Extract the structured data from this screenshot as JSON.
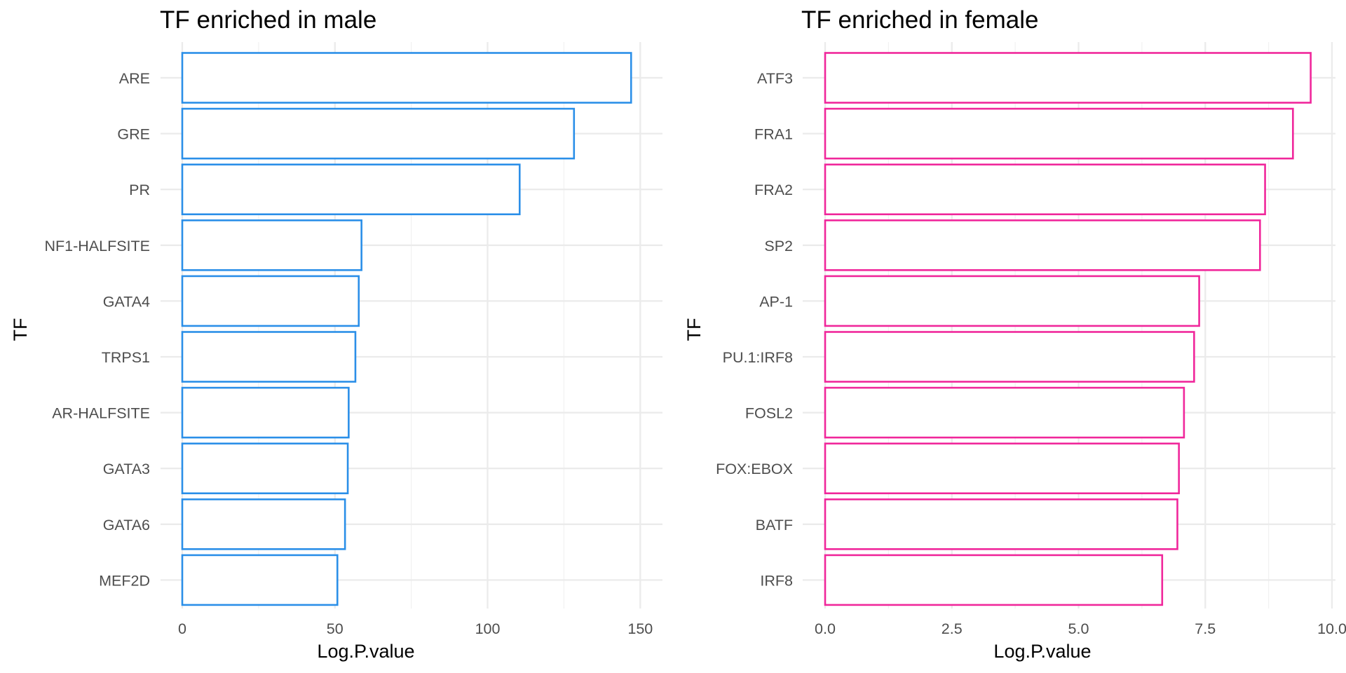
{
  "chart_data": [
    {
      "type": "bar",
      "orientation": "horizontal",
      "title": "TF enriched in male",
      "xlabel": "Log.P.value",
      "ylabel": "TF",
      "categories": [
        "ARE",
        "GRE",
        "PR",
        "NF1-HALFSITE",
        "GATA4",
        "TRPS1",
        "AR-HALFSITE",
        "GATA3",
        "GATA6",
        "MEF2D"
      ],
      "values": [
        147,
        128.3,
        110.5,
        58.7,
        57.8,
        56.7,
        54.5,
        54.2,
        53.3,
        50.8
      ],
      "xlim": [
        0,
        155
      ],
      "xticks": [
        0,
        50,
        100,
        150
      ],
      "xtick_labels": [
        "0",
        "50",
        "100",
        "150"
      ],
      "bar_outline_color": "#2b8fe8",
      "bar_fill": "#ffffff",
      "grid": true
    },
    {
      "type": "bar",
      "orientation": "horizontal",
      "title": "TF enriched in female",
      "xlabel": "Log.P.value",
      "ylabel": "TF",
      "categories": [
        "ATF3",
        "FRA1",
        "FRA2",
        "SP2",
        "AP-1",
        "PU.1:IRF8",
        "FOSL2",
        "FOX:EBOX",
        "BATF",
        "IRF8"
      ],
      "values": [
        9.58,
        9.23,
        8.68,
        8.58,
        7.38,
        7.28,
        7.08,
        6.98,
        6.95,
        6.65
      ],
      "xlim": [
        0,
        10
      ],
      "xticks": [
        0,
        2.5,
        5,
        7.5,
        10
      ],
      "xtick_labels": [
        "0.0",
        "2.5",
        "5.0",
        "7.5",
        "10.0"
      ],
      "bar_outline_color": "#f0279b",
      "bar_fill": "#ffffff",
      "grid": true
    }
  ]
}
